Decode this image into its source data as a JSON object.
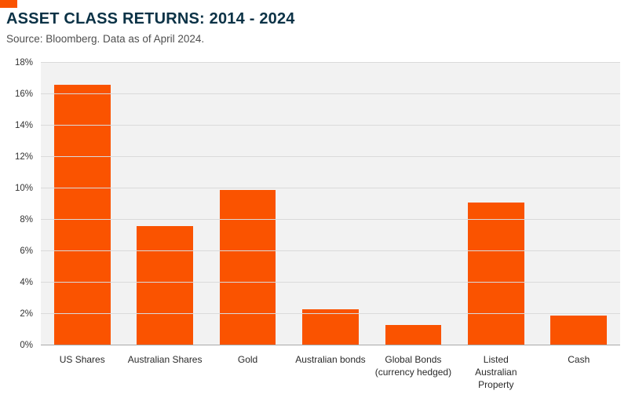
{
  "accent_color": "#fa5300",
  "header": {
    "title": "ASSET CLASS RETURNS: 2014 - 2024",
    "subtitle": "Source: Bloomberg. Data as of April 2024."
  },
  "chart_data": {
    "type": "bar",
    "title": "ASSET CLASS RETURNS: 2014 - 2024",
    "subtitle": "Source: Bloomberg. Data as of April 2024.",
    "categories": [
      "US Shares",
      "Australian Shares",
      "Gold",
      "Australian bonds",
      "Global Bonds\n(currency hedged)",
      "Listed\nAustralian\nProperty",
      "Cash"
    ],
    "values": [
      16.6,
      7.6,
      9.9,
      2.3,
      1.3,
      9.1,
      1.9
    ],
    "xlabel": "",
    "ylabel": "",
    "ylim": [
      0,
      18
    ],
    "ytick_step": 2,
    "ytick_suffix": "%",
    "ytick_labels": [
      "0%",
      "2%",
      "4%",
      "6%",
      "8%",
      "10%",
      "12%",
      "14%",
      "16%",
      "18%"
    ],
    "bar_color": "#fa5300",
    "grid": true,
    "legend": "none",
    "plot_background": "#f2f2f2"
  }
}
